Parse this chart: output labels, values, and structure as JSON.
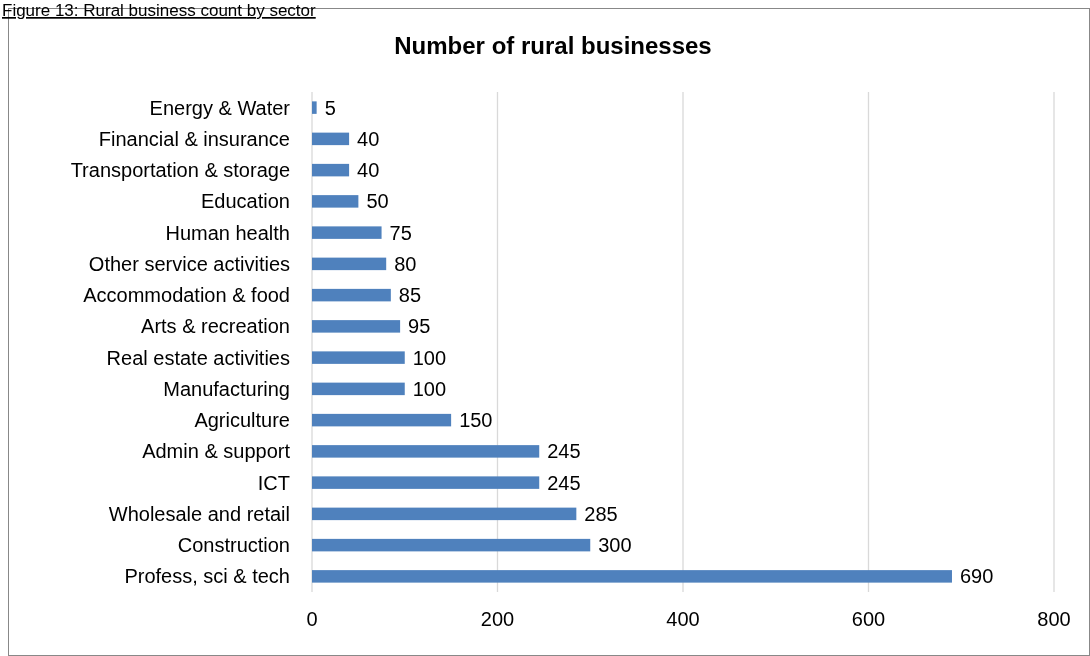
{
  "chart_data": {
    "type": "bar",
    "orientation": "horizontal",
    "title": "Number of rural businesses",
    "annotations": [
      "Figure 13: Rural business count by sector"
    ],
    "categories": [
      "Energy & Water",
      "Financial & insurance",
      "Transportation & storage",
      "Education",
      "Human health",
      "Other service activities",
      "Accommodation & food",
      "Arts & recreation",
      "Real estate activities",
      "Manufacturing",
      "Agriculture",
      "Admin & support",
      "ICT",
      "Wholesale and retail",
      "Construction",
      "Profess, sci & tech"
    ],
    "values": [
      5,
      40,
      40,
      50,
      75,
      80,
      85,
      95,
      100,
      100,
      150,
      245,
      245,
      285,
      300,
      690
    ],
    "color": "#4f81bd",
    "xlim": [
      0,
      800
    ],
    "xticks": [
      0,
      200,
      400,
      600,
      800
    ],
    "grid": "x",
    "data_labels": true
  }
}
